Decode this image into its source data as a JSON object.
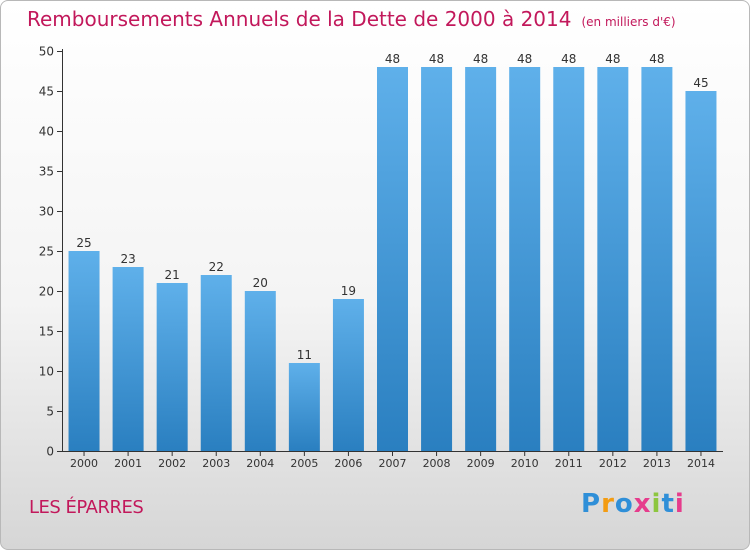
{
  "header": {
    "title": "Remboursements Annuels de la Dette de 2000 à 2014",
    "unit": "(en milliers d'€)"
  },
  "footer": {
    "commune": "LES ÉPARRES",
    "logo": "Proxiti"
  },
  "colors": {
    "title": "#c2185b",
    "bar_top": "#5fb0ea",
    "bar_bottom": "#2a7fc0",
    "logo_letters": [
      "#2f8fd8",
      "#f39c12",
      "#2f8fd8",
      "#e63c8c",
      "#8dc63f",
      "#2f8fd8",
      "#e63c8c"
    ]
  },
  "chart_data": {
    "type": "bar",
    "title": "Remboursements Annuels de la Dette de 2000 à 2014",
    "xlabel": "",
    "ylabel": "",
    "categories": [
      "2000",
      "2001",
      "2002",
      "2003",
      "2004",
      "2005",
      "2006",
      "2007",
      "2008",
      "2009",
      "2010",
      "2011",
      "2012",
      "2013",
      "2014"
    ],
    "values": [
      25,
      23,
      21,
      22,
      20,
      11,
      19,
      48,
      48,
      48,
      48,
      48,
      48,
      48,
      45
    ],
    "ylim": [
      0,
      50
    ],
    "yticks": [
      0,
      5,
      10,
      15,
      20,
      25,
      30,
      35,
      40,
      45,
      50
    ],
    "grid": false,
    "legend": "none"
  }
}
